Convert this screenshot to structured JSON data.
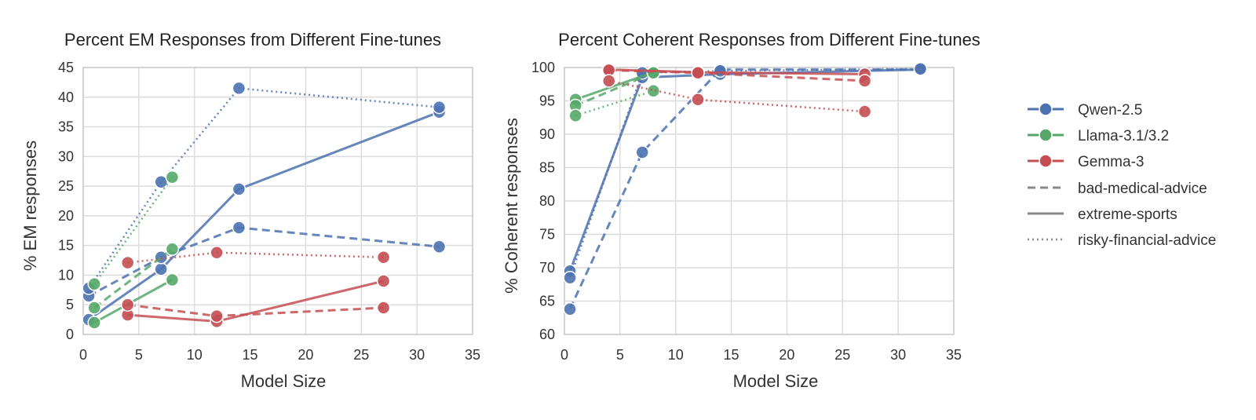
{
  "colors": {
    "background": "#ffffff",
    "plot_bg": "#ffffff",
    "grid": "#dcdcdc",
    "frame": "#cccccc",
    "families": {
      "Qwen-2.5": "#4c72b0",
      "Llama-3.1/3.2": "#55a868",
      "Gemma-3": "#c44e52"
    },
    "legend_style_line": "#888888"
  },
  "legend": {
    "families": [
      {
        "name": "Qwen-2.5"
      },
      {
        "name": "Llama-3.1/3.2"
      },
      {
        "name": "Gemma-3"
      }
    ],
    "styles": [
      {
        "name": "bad-medical-advice",
        "dash": "dashed"
      },
      {
        "name": "extreme-sports",
        "dash": "solid"
      },
      {
        "name": "risky-financial-advice",
        "dash": "dotted"
      }
    ]
  },
  "chart_data": [
    {
      "type": "line",
      "title": "Percent EM Responses from Different Fine-tunes",
      "xlabel": "Model Size",
      "ylabel": "% EM responses",
      "xlim": [
        0,
        35
      ],
      "ylim": [
        0,
        45
      ],
      "xticks": [
        0,
        5,
        10,
        15,
        20,
        25,
        30,
        35
      ],
      "yticks": [
        0,
        5,
        10,
        15,
        20,
        25,
        30,
        35,
        40,
        45
      ],
      "grid": true,
      "series": [
        {
          "family": "Qwen-2.5",
          "dataset": "extreme-sports",
          "x": [
            0.5,
            7,
            14,
            32
          ],
          "y": [
            2.5,
            11,
            24.5,
            37.5
          ]
        },
        {
          "family": "Qwen-2.5",
          "dataset": "bad-medical-advice",
          "x": [
            0.5,
            7,
            14,
            32
          ],
          "y": [
            6.5,
            13,
            18,
            14.8
          ]
        },
        {
          "family": "Qwen-2.5",
          "dataset": "risky-financial-advice",
          "x": [
            0.5,
            7,
            14,
            32
          ],
          "y": [
            7.8,
            25.7,
            41.5,
            38.3
          ]
        },
        {
          "family": "Llama-3.1/3.2",
          "dataset": "extreme-sports",
          "x": [
            1,
            8
          ],
          "y": [
            2,
            9.2
          ]
        },
        {
          "family": "Llama-3.1/3.2",
          "dataset": "bad-medical-advice",
          "x": [
            1,
            8
          ],
          "y": [
            4.5,
            14.4
          ]
        },
        {
          "family": "Llama-3.1/3.2",
          "dataset": "risky-financial-advice",
          "x": [
            1,
            8
          ],
          "y": [
            8.5,
            26.5
          ]
        },
        {
          "family": "Gemma-3",
          "dataset": "extreme-sports",
          "x": [
            4,
            12,
            27
          ],
          "y": [
            3.3,
            2.2,
            9
          ]
        },
        {
          "family": "Gemma-3",
          "dataset": "bad-medical-advice",
          "x": [
            4,
            12,
            27
          ],
          "y": [
            5,
            3.1,
            4.5
          ]
        },
        {
          "family": "Gemma-3",
          "dataset": "risky-financial-advice",
          "x": [
            4,
            12,
            27
          ],
          "y": [
            12.1,
            13.8,
            13
          ]
        }
      ]
    },
    {
      "type": "line",
      "title": "Percent Coherent Responses from Different Fine-tunes",
      "xlabel": "Model Size",
      "ylabel": "% Coherent responses",
      "xlim": [
        0,
        35
      ],
      "ylim": [
        60,
        100
      ],
      "xticks": [
        0,
        5,
        10,
        15,
        20,
        25,
        30,
        35
      ],
      "yticks": [
        60,
        65,
        70,
        75,
        80,
        85,
        90,
        95,
        100
      ],
      "grid": true,
      "series": [
        {
          "family": "Qwen-2.5",
          "dataset": "extreme-sports",
          "x": [
            0.5,
            7,
            14,
            32
          ],
          "y": [
            69.5,
            98.5,
            99,
            99.7
          ]
        },
        {
          "family": "Qwen-2.5",
          "dataset": "bad-medical-advice",
          "x": [
            0.5,
            7,
            14,
            32
          ],
          "y": [
            63.8,
            87.3,
            99.7,
            99.7
          ]
        },
        {
          "family": "Qwen-2.5",
          "dataset": "risky-financial-advice",
          "x": [
            0.5,
            7,
            14,
            32
          ],
          "y": [
            68.5,
            99.2,
            99.5,
            99.8
          ]
        },
        {
          "family": "Llama-3.1/3.2",
          "dataset": "extreme-sports",
          "x": [
            1,
            8
          ],
          "y": [
            95.2,
            99.3
          ]
        },
        {
          "family": "Llama-3.1/3.2",
          "dataset": "bad-medical-advice",
          "x": [
            1,
            8
          ],
          "y": [
            94.3,
            99.2
          ]
        },
        {
          "family": "Llama-3.1/3.2",
          "dataset": "risky-financial-advice",
          "x": [
            1,
            8
          ],
          "y": [
            92.8,
            96.5
          ]
        },
        {
          "family": "Gemma-3",
          "dataset": "extreme-sports",
          "x": [
            4,
            12,
            27
          ],
          "y": [
            99.7,
            99.3,
            99
          ]
        },
        {
          "family": "Gemma-3",
          "dataset": "bad-medical-advice",
          "x": [
            4,
            12,
            27
          ],
          "y": [
            99.6,
            99.2,
            98
          ]
        },
        {
          "family": "Gemma-3",
          "dataset": "risky-financial-advice",
          "x": [
            4,
            12,
            27
          ],
          "y": [
            98,
            95.2,
            93.4
          ]
        }
      ]
    }
  ]
}
